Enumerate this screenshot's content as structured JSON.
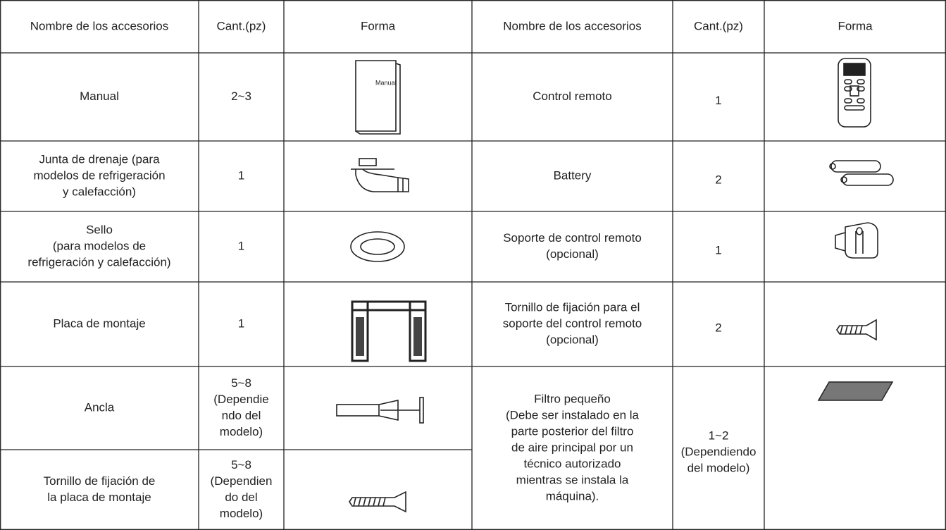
{
  "table": {
    "headers": [
      "Nombre de los accesorios",
      "Cant.(pz)",
      "Forma",
      "Nombre de los accesorios",
      "Cant.(pz)",
      "Forma"
    ],
    "left_rows": [
      {
        "name": [
          "Manual"
        ],
        "qty": [
          "2~3"
        ]
      },
      {
        "name": [
          "Junta de drenaje (para",
          "modelos de refrigeración",
          "y calefacción)"
        ],
        "qty": [
          "1"
        ]
      },
      {
        "name": [
          "Sello",
          "(para modelos de",
          "refrigeración y calefacción)"
        ],
        "qty": [
          "1"
        ]
      },
      {
        "name": [
          "Placa de montaje"
        ],
        "qty": [
          "1"
        ]
      },
      {
        "name": [
          "Ancla"
        ],
        "qty": [
          "5~8",
          "(Dependie",
          "ndo del",
          "modelo)"
        ]
      },
      {
        "name": [
          "Tornillo de fijación de",
          "la placa de montaje"
        ],
        "qty": [
          "5~8",
          "(Dependien",
          "do del",
          "modelo)"
        ]
      }
    ],
    "right_rows": [
      {
        "name": [
          "Control remoto"
        ],
        "qty": [
          "1"
        ]
      },
      {
        "name": [
          "Battery"
        ],
        "qty": [
          "2"
        ]
      },
      {
        "name": [
          "Soporte de control remoto",
          "(opcional)"
        ],
        "qty": [
          "1"
        ]
      },
      {
        "name": [
          "Tornillo de fijación para el",
          "soporte del control remoto",
          "(opcional)"
        ],
        "qty": [
          "2"
        ]
      },
      {
        "name": [
          "Filtro pequeño",
          "(Debe ser instalado en la",
          "parte posterior del filtro",
          "de aire principal por un",
          "técnico autorizado",
          "mientras se instala la",
          "máquina)."
        ],
        "qty": [
          "1~2",
          "(Dependiendo",
          "del modelo)"
        ]
      }
    ]
  },
  "icons": {
    "manual_label": "Manual"
  }
}
